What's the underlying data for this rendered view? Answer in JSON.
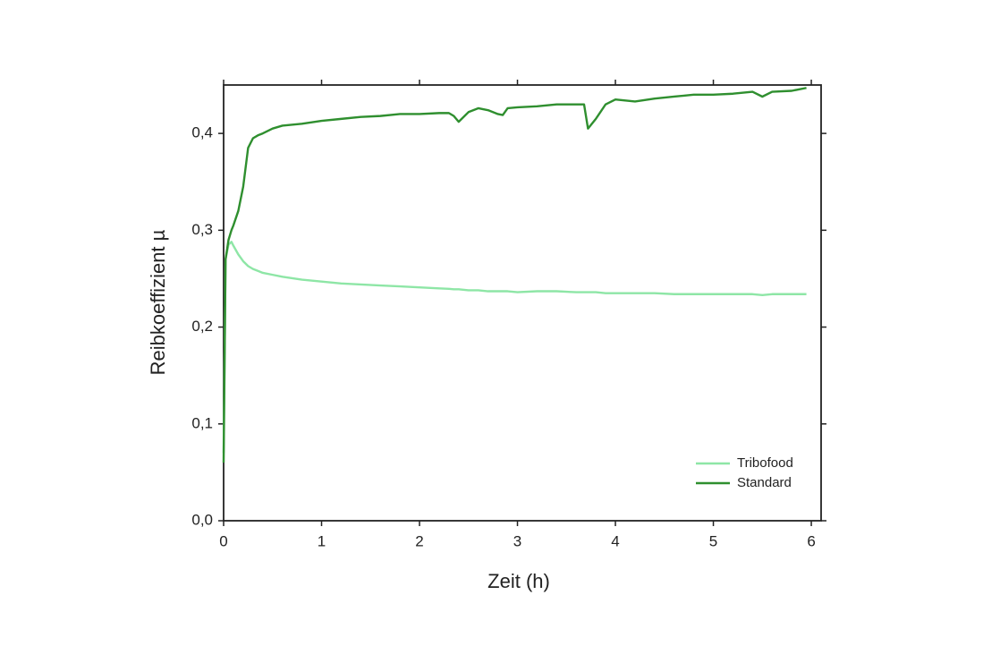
{
  "chart_data": {
    "type": "line",
    "x_label": "Zeit (h)",
    "y_label": "Reibkoeffizient µ",
    "x": [
      0,
      0.02,
      0.05,
      0.08,
      0.1,
      0.15,
      0.2,
      0.25,
      0.3,
      0.35,
      0.4,
      0.5,
      0.6,
      0.8,
      1.0,
      1.2,
      1.4,
      1.6,
      1.8,
      2.0,
      2.2,
      2.3,
      2.35,
      2.4,
      2.5,
      2.6,
      2.7,
      2.8,
      2.85,
      2.9,
      3.0,
      3.2,
      3.4,
      3.6,
      3.68,
      3.72,
      3.8,
      3.9,
      4.0,
      4.2,
      4.4,
      4.6,
      4.8,
      5.0,
      5.2,
      5.4,
      5.5,
      5.6,
      5.8,
      5.95
    ],
    "series": [
      {
        "name": "Tribofood",
        "color": "#8ee6a6",
        "values": [
          0.07,
          0.27,
          0.285,
          0.288,
          0.284,
          0.275,
          0.268,
          0.263,
          0.26,
          0.258,
          0.256,
          0.254,
          0.252,
          0.249,
          0.247,
          0.245,
          0.244,
          0.243,
          0.242,
          0.241,
          0.24,
          0.2395,
          0.239,
          0.239,
          0.238,
          0.238,
          0.237,
          0.237,
          0.237,
          0.237,
          0.236,
          0.237,
          0.237,
          0.236,
          0.236,
          0.236,
          0.236,
          0.235,
          0.235,
          0.235,
          0.235,
          0.234,
          0.234,
          0.234,
          0.234,
          0.234,
          0.233,
          0.234,
          0.234,
          0.234
        ]
      },
      {
        "name": "Standard",
        "color": "#2f8f2f",
        "values": [
          0.06,
          0.27,
          0.29,
          0.3,
          0.305,
          0.32,
          0.345,
          0.385,
          0.395,
          0.398,
          0.4,
          0.405,
          0.408,
          0.41,
          0.413,
          0.415,
          0.417,
          0.418,
          0.42,
          0.42,
          0.421,
          0.421,
          0.418,
          0.412,
          0.422,
          0.426,
          0.424,
          0.42,
          0.419,
          0.426,
          0.427,
          0.428,
          0.43,
          0.43,
          0.43,
          0.405,
          0.415,
          0.43,
          0.435,
          0.433,
          0.436,
          0.438,
          0.44,
          0.44,
          0.441,
          0.443,
          0.438,
          0.443,
          0.444,
          0.447
        ]
      }
    ],
    "xlim": [
      0,
      6.1
    ],
    "xticks": [
      0,
      1,
      2,
      3,
      4,
      5,
      6
    ],
    "ylim": [
      0,
      0.45
    ],
    "yticks": [
      {
        "value": 0,
        "label": "0,0"
      },
      {
        "value": 0.1,
        "label": "0,1"
      },
      {
        "value": 0.2,
        "label": "0,2"
      },
      {
        "value": 0.3,
        "label": "0,3"
      },
      {
        "value": 0.4,
        "label": "0,4"
      }
    ],
    "legend": "lower right",
    "grid": false
  }
}
